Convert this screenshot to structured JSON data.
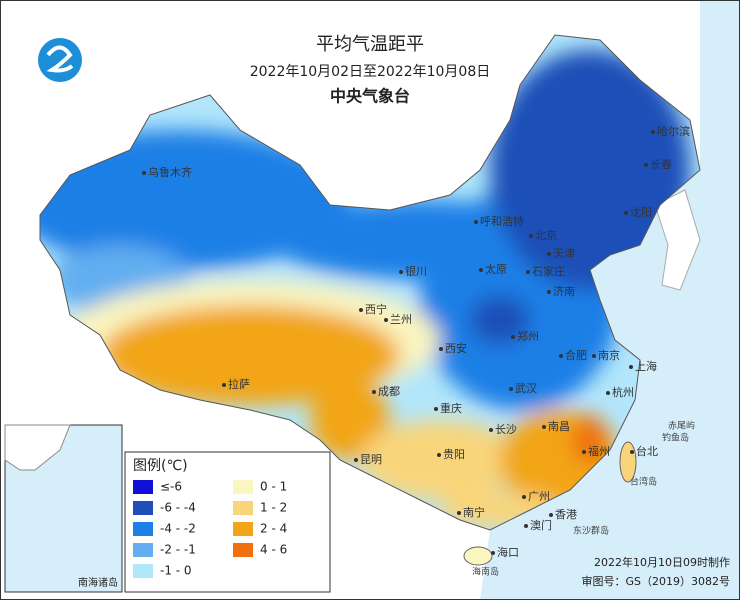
{
  "header": {
    "title": "平均气温距平",
    "subtitle": "2022年10月02日至2022年10月08日",
    "organization": "中央气象台"
  },
  "legend": {
    "title": "图例(℃)",
    "items": [
      {
        "label": "≤-6",
        "color": "#1010d8"
      },
      {
        "label": "-6 - -4",
        "color": "#1e4fb8"
      },
      {
        "label": "-4 - -2",
        "color": "#1e7fe6"
      },
      {
        "label": "-2 - -1",
        "color": "#62aef0"
      },
      {
        "label": "-1 - 0",
        "color": "#b2e6fb"
      },
      {
        "label": "0 - 1",
        "color": "#fbf5c0"
      },
      {
        "label": "1 - 2",
        "color": "#f8d57a"
      },
      {
        "label": "2 - 4",
        "color": "#f2a516"
      },
      {
        "label": "4 - 6",
        "color": "#f07010"
      }
    ]
  },
  "map_labels": {
    "cities": [
      "乌鲁木齐",
      "哈尔滨",
      "长春",
      "沈阳",
      "呼和浩特",
      "北京",
      "天津",
      "银川",
      "太原",
      "石家庄",
      "济南",
      "西宁",
      "兰州",
      "郑州",
      "西安",
      "合肥",
      "南京",
      "上海",
      "拉萨",
      "成都",
      "武汉",
      "杭州",
      "重庆",
      "长沙",
      "南昌",
      "福州",
      "贵阳",
      "昆明",
      "台北",
      "广州",
      "南宁",
      "香港",
      "澳门",
      "海口"
    ],
    "islands": [
      "台湾岛",
      "海南岛",
      "钓鱼岛",
      "赤尾屿",
      "东沙群岛"
    ]
  },
  "inset": {
    "label": "南海诸岛"
  },
  "footer": {
    "made": "2022年10月10日09时制作",
    "approval": "审图号：GS（2019）3082号"
  }
}
